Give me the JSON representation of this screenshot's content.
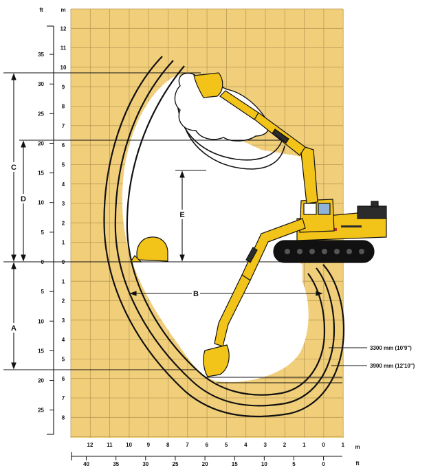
{
  "colors": {
    "grid_background": "#f1cf7a",
    "grid_line": "#b89a55",
    "envelope_fill": "#ffffff",
    "machine_yellow": "#f2c318",
    "track_black": "#111111",
    "counterweight": "#2b2b2b",
    "stripe_red": "#c0282e"
  },
  "units": {
    "feet_top": "ft",
    "meters_top": "m",
    "meters_bottom": "m",
    "feet_bottom": "ft"
  },
  "axes": {
    "left_feet_labels": [
      "35",
      "30",
      "25",
      "20",
      "15",
      "10",
      "5",
      "0",
      "5",
      "10",
      "15",
      "20",
      "25"
    ],
    "left_meter_labels": [
      "12",
      "11",
      "10",
      "9",
      "8",
      "7",
      "6",
      "5",
      "4",
      "3",
      "2",
      "1",
      "0",
      "1",
      "2",
      "3",
      "4",
      "5",
      "6",
      "7",
      "8"
    ],
    "bottom_meter_labels": [
      "12",
      "11",
      "10",
      "9",
      "8",
      "7",
      "6",
      "5",
      "4",
      "3",
      "2",
      "1",
      "0",
      "1"
    ],
    "bottom_feet_labels": [
      "40",
      "35",
      "30",
      "25",
      "20",
      "15",
      "10",
      "5",
      "0"
    ]
  },
  "dimensions": {
    "A": "A",
    "B": "B",
    "C": "C",
    "D": "D",
    "E": "E"
  },
  "annotations": {
    "stick_short": "3300 mm (10'9\")",
    "stick_long": "3900 mm (12'10\")"
  }
}
